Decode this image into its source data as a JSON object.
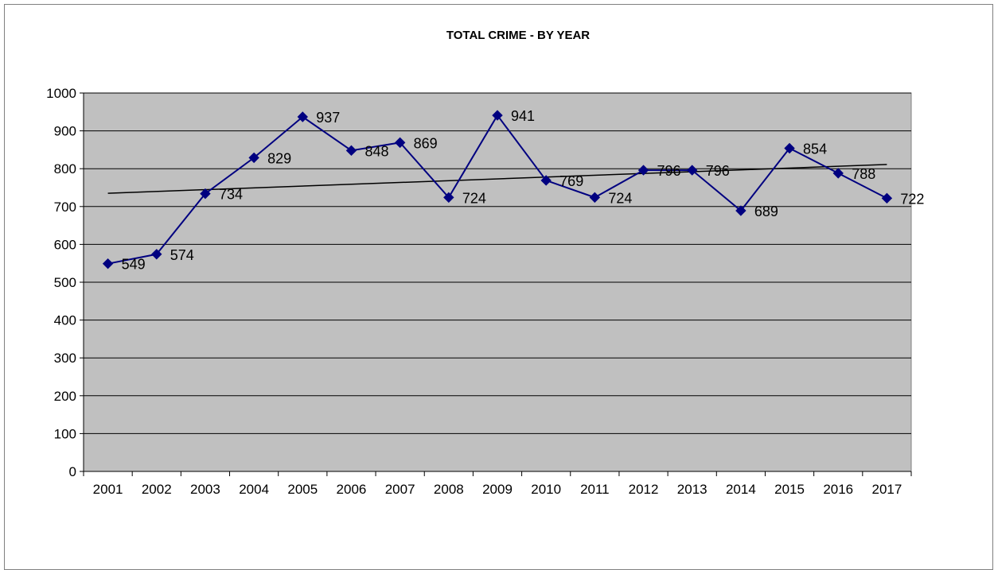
{
  "chart_data": {
    "type": "line",
    "title": "TOTAL CRIME - BY YEAR",
    "xlabel": "",
    "ylabel": "",
    "categories": [
      "2001",
      "2002",
      "2003",
      "2004",
      "2005",
      "2006",
      "2007",
      "2008",
      "2009",
      "2010",
      "2011",
      "2012",
      "2013",
      "2014",
      "2015",
      "2016",
      "2017"
    ],
    "series": [
      {
        "values": [
          549,
          574,
          734,
          829,
          937,
          848,
          869,
          724,
          941,
          769,
          724,
          796,
          796,
          689,
          854,
          788,
          722
        ],
        "color": "#000080",
        "marker": "diamond"
      }
    ],
    "trendline": {
      "type": "linear",
      "color": "#000000"
    },
    "ylim": [
      0,
      1000
    ],
    "yticks": [
      0,
      100,
      200,
      300,
      400,
      500,
      600,
      700,
      800,
      900,
      1000
    ],
    "grid": true,
    "plot_background": "#c0c0c0",
    "data_labels": true,
    "legend": "none"
  }
}
